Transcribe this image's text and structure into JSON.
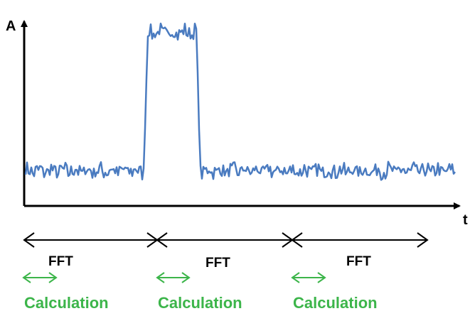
{
  "axes": {
    "y_label": "A",
    "x_label": "t"
  },
  "signal": {
    "color": "#4a7bc0",
    "baseline_level": 0.19,
    "pulse_level": 0.94,
    "noise_amplitude": 0.06
  },
  "segments": [
    {
      "label": "FFT",
      "calc_label": "Calculation"
    },
    {
      "label": "FFT",
      "calc_label": "Calculation"
    },
    {
      "label": "FFT",
      "calc_label": "Calculation"
    }
  ],
  "colors": {
    "axis": "#000000",
    "fft_arrow": "#000000",
    "calc_arrow": "#3cb54a",
    "calc_text": "#3cb54a"
  }
}
